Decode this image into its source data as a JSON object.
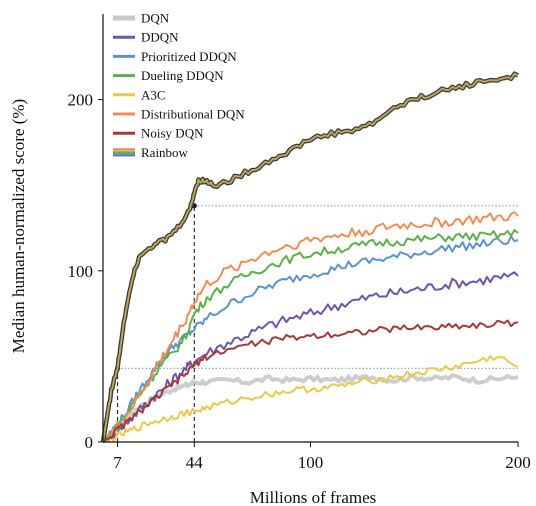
{
  "chart_data": {
    "type": "line",
    "xlabel": "Millions of frames",
    "ylabel": "Median human-normalized score (%)",
    "xlim": [
      0,
      200
    ],
    "ylim": [
      0,
      250
    ],
    "x_ticks": [
      {
        "value": 7,
        "label": "7"
      },
      {
        "value": 44,
        "label": "44"
      },
      {
        "value": 100,
        "label": "100"
      },
      {
        "value": 200,
        "label": "200"
      }
    ],
    "y_ticks": [
      {
        "value": 0,
        "label": "0"
      },
      {
        "value": 100,
        "label": "100"
      },
      {
        "value": 200,
        "label": "200"
      }
    ],
    "grid": false,
    "legend_position": "top-left",
    "reference_lines": [
      {
        "y": 138,
        "x_from": 44,
        "x_to": 200
      },
      {
        "y": 43,
        "x_from": 7,
        "x_to": 200
      },
      {
        "x": 7,
        "y_from": 0,
        "y_to": 43
      },
      {
        "x": 44,
        "y_from": 0,
        "y_to": 138
      }
    ],
    "reference_points": [
      {
        "x": 7,
        "y": 43
      },
      {
        "x": 44,
        "y": 138
      }
    ],
    "series": [
      {
        "name": "DQN",
        "color": "#c8c8c8",
        "width": 4,
        "x": [
          0,
          4,
          10,
          16,
          22,
          28,
          34,
          40,
          44,
          50,
          60,
          70,
          80,
          90,
          100,
          110,
          120,
          130,
          140,
          150,
          160,
          170,
          180,
          190,
          200
        ],
        "y": [
          0,
          4,
          12,
          19,
          24,
          28,
          31,
          33,
          35,
          35,
          36,
          35,
          37,
          36,
          37,
          36,
          37,
          38,
          36,
          38,
          37,
          38,
          36,
          37,
          38
        ]
      },
      {
        "name": "DDQN",
        "color": "#6f56a8",
        "width": 2,
        "x": [
          0,
          4,
          10,
          16,
          22,
          28,
          34,
          40,
          44,
          50,
          60,
          70,
          80,
          90,
          100,
          110,
          120,
          130,
          140,
          150,
          160,
          170,
          180,
          190,
          200
        ],
        "y": [
          0,
          4,
          10,
          17,
          24,
          30,
          37,
          43,
          47,
          52,
          58,
          63,
          68,
          72,
          75,
          79,
          82,
          85,
          87,
          89,
          91,
          93,
          94,
          96,
          97
        ]
      },
      {
        "name": "Prioritized DDQN",
        "color": "#5c93c9",
        "width": 2,
        "x": [
          0,
          4,
          10,
          16,
          22,
          28,
          34,
          40,
          44,
          50,
          60,
          70,
          80,
          90,
          100,
          110,
          120,
          130,
          140,
          150,
          160,
          170,
          180,
          190,
          200
        ],
        "y": [
          0,
          6,
          15,
          27,
          38,
          48,
          56,
          62,
          66,
          72,
          80,
          86,
          91,
          95,
          98,
          101,
          104,
          106,
          108,
          110,
          112,
          114,
          115,
          117,
          118
        ]
      },
      {
        "name": "Dueling DDQN",
        "color": "#5cb04a",
        "width": 2,
        "x": [
          0,
          4,
          10,
          16,
          22,
          28,
          34,
          40,
          44,
          50,
          60,
          70,
          80,
          90,
          100,
          110,
          120,
          130,
          140,
          150,
          160,
          170,
          180,
          190,
          200
        ],
        "y": [
          0,
          5,
          14,
          25,
          35,
          45,
          52,
          62,
          75,
          84,
          92,
          98,
          103,
          107,
          110,
          112,
          114,
          116,
          117,
          118,
          119,
          120,
          120,
          121,
          122
        ]
      },
      {
        "name": "A3C",
        "color": "#e7c94d",
        "width": 2,
        "x": [
          0,
          4,
          10,
          16,
          22,
          28,
          34,
          40,
          44,
          50,
          60,
          70,
          80,
          90,
          100,
          110,
          120,
          130,
          140,
          150,
          160,
          170,
          180,
          190,
          200
        ],
        "y": [
          0,
          2,
          5,
          8,
          11,
          13,
          15,
          17,
          18,
          20,
          23,
          26,
          28,
          30,
          31,
          32,
          34,
          36,
          38,
          40,
          42,
          44,
          47,
          50,
          44
        ]
      },
      {
        "name": "Distributional DQN",
        "color": "#ef8d55",
        "width": 2,
        "x": [
          0,
          4,
          10,
          16,
          22,
          28,
          34,
          40,
          44,
          50,
          60,
          70,
          80,
          90,
          100,
          110,
          120,
          130,
          140,
          150,
          160,
          170,
          180,
          190,
          200
        ],
        "y": [
          0,
          5,
          13,
          24,
          36,
          48,
          60,
          72,
          82,
          92,
          100,
          106,
          111,
          115,
          118,
          120,
          122,
          124,
          126,
          127,
          128,
          129,
          130,
          131,
          132
        ]
      },
      {
        "name": "Noisy DQN",
        "color": "#a33b3b",
        "width": 2,
        "x": [
          0,
          4,
          10,
          16,
          22,
          28,
          34,
          40,
          44,
          50,
          60,
          70,
          80,
          90,
          100,
          110,
          120,
          130,
          140,
          150,
          160,
          170,
          180,
          190,
          200
        ],
        "y": [
          0,
          4,
          10,
          16,
          22,
          28,
          34,
          40,
          45,
          50,
          54,
          57,
          59,
          61,
          62,
          63,
          64,
          65,
          66,
          67,
          67,
          68,
          68,
          69,
          70
        ]
      },
      {
        "name": "Rainbow",
        "color": "rainbow",
        "width": 3,
        "x": [
          0,
          2,
          4,
          7,
          10,
          14,
          18,
          24,
          30,
          36,
          42,
          44,
          46,
          50,
          54,
          60,
          70,
          80,
          90,
          100,
          110,
          120,
          130,
          140,
          150,
          160,
          170,
          180,
          190,
          200
        ],
        "y": [
          0,
          15,
          30,
          43,
          70,
          96,
          110,
          115,
          118,
          125,
          136,
          146,
          153,
          152,
          150,
          152,
          158,
          164,
          170,
          177,
          180,
          182,
          186,
          195,
          200,
          204,
          207,
          210,
          212,
          214
        ]
      }
    ]
  }
}
